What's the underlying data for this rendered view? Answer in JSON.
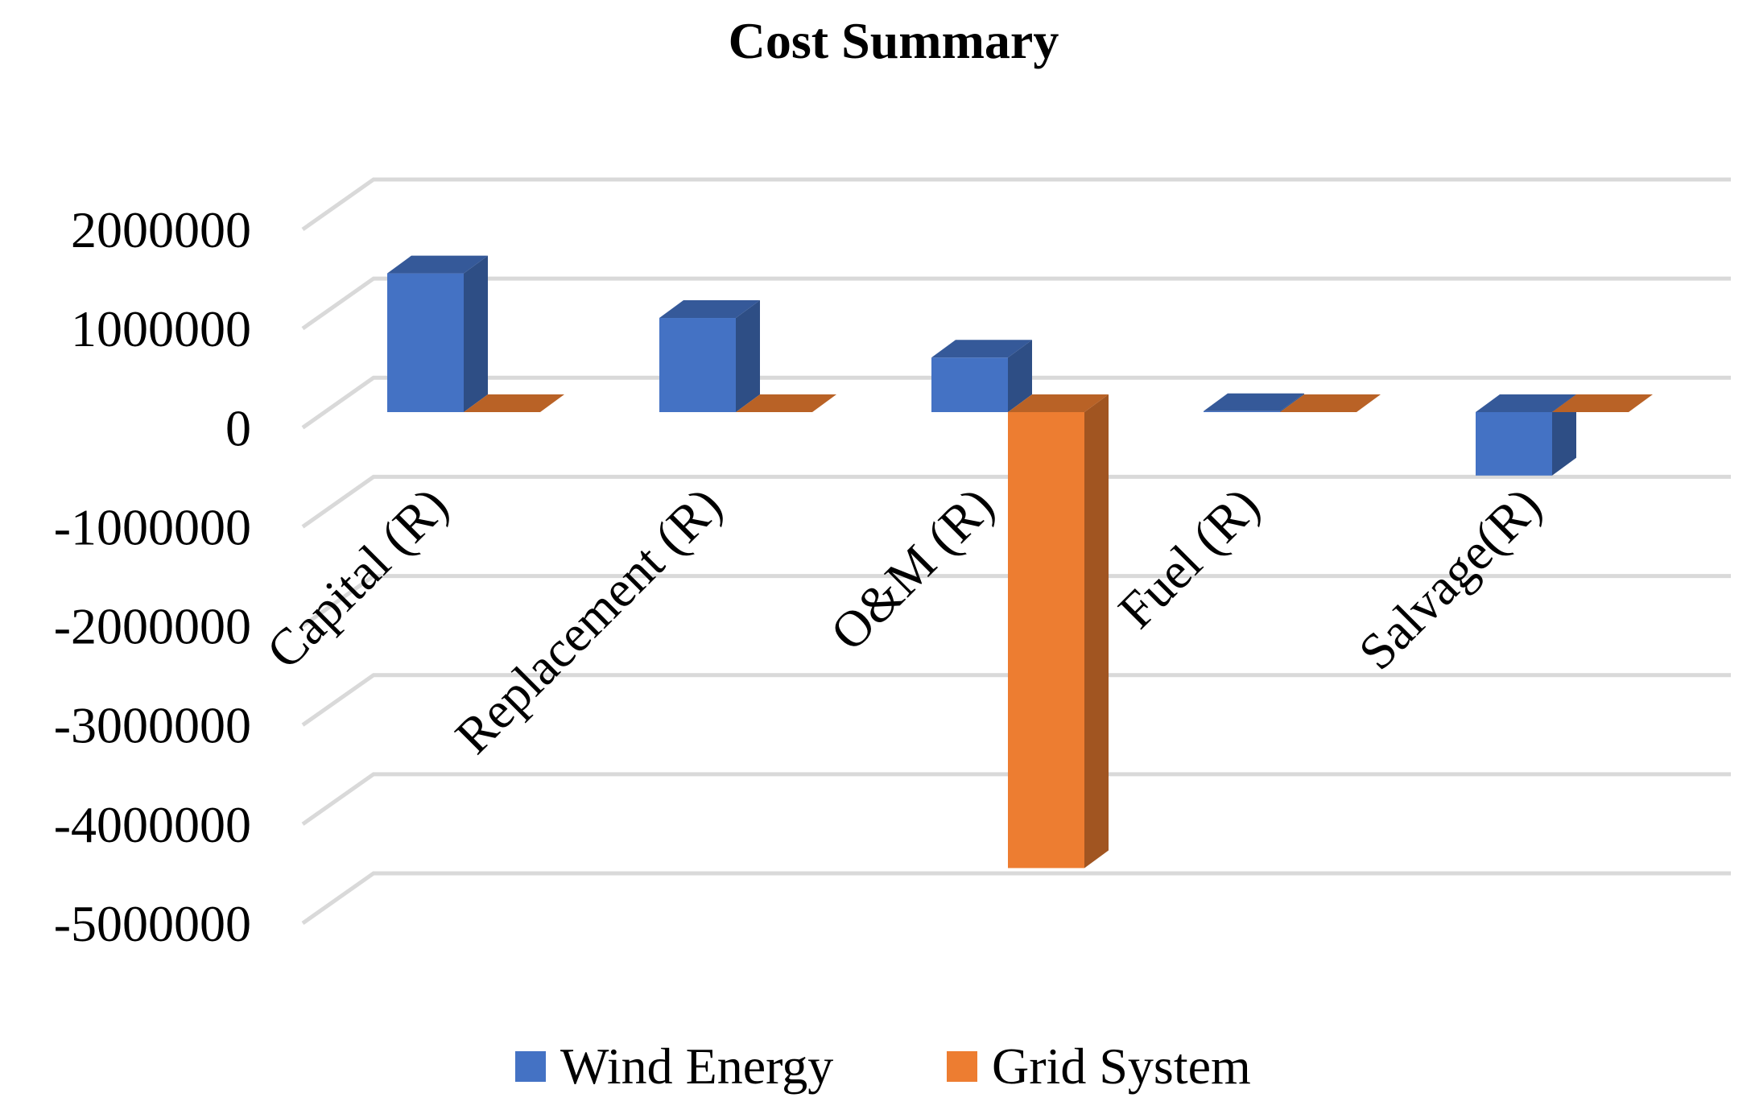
{
  "chart_data": {
    "type": "bar",
    "title": "Cost Summary",
    "categories": [
      "Capital (R)",
      "Replacement (R)",
      "O&M (R)",
      "Fuel (R)",
      "Salvage(R)"
    ],
    "series": [
      {
        "name": "Wind Energy",
        "color": "#4472c4",
        "values": [
          1400000,
          950000,
          550000,
          10000,
          -640000
        ]
      },
      {
        "name": "Grid System",
        "color": "#ed7d31",
        "values": [
          0,
          0,
          -4600000,
          0,
          0
        ]
      }
    ],
    "yticks": [
      "2000000",
      "1000000",
      "0",
      "-1000000",
      "-2000000",
      "-3000000",
      "-4000000",
      "-5000000"
    ],
    "ylim": [
      -5000000,
      2000000
    ],
    "xlabel": "",
    "ylabel": "",
    "legend_position": "bottom"
  }
}
